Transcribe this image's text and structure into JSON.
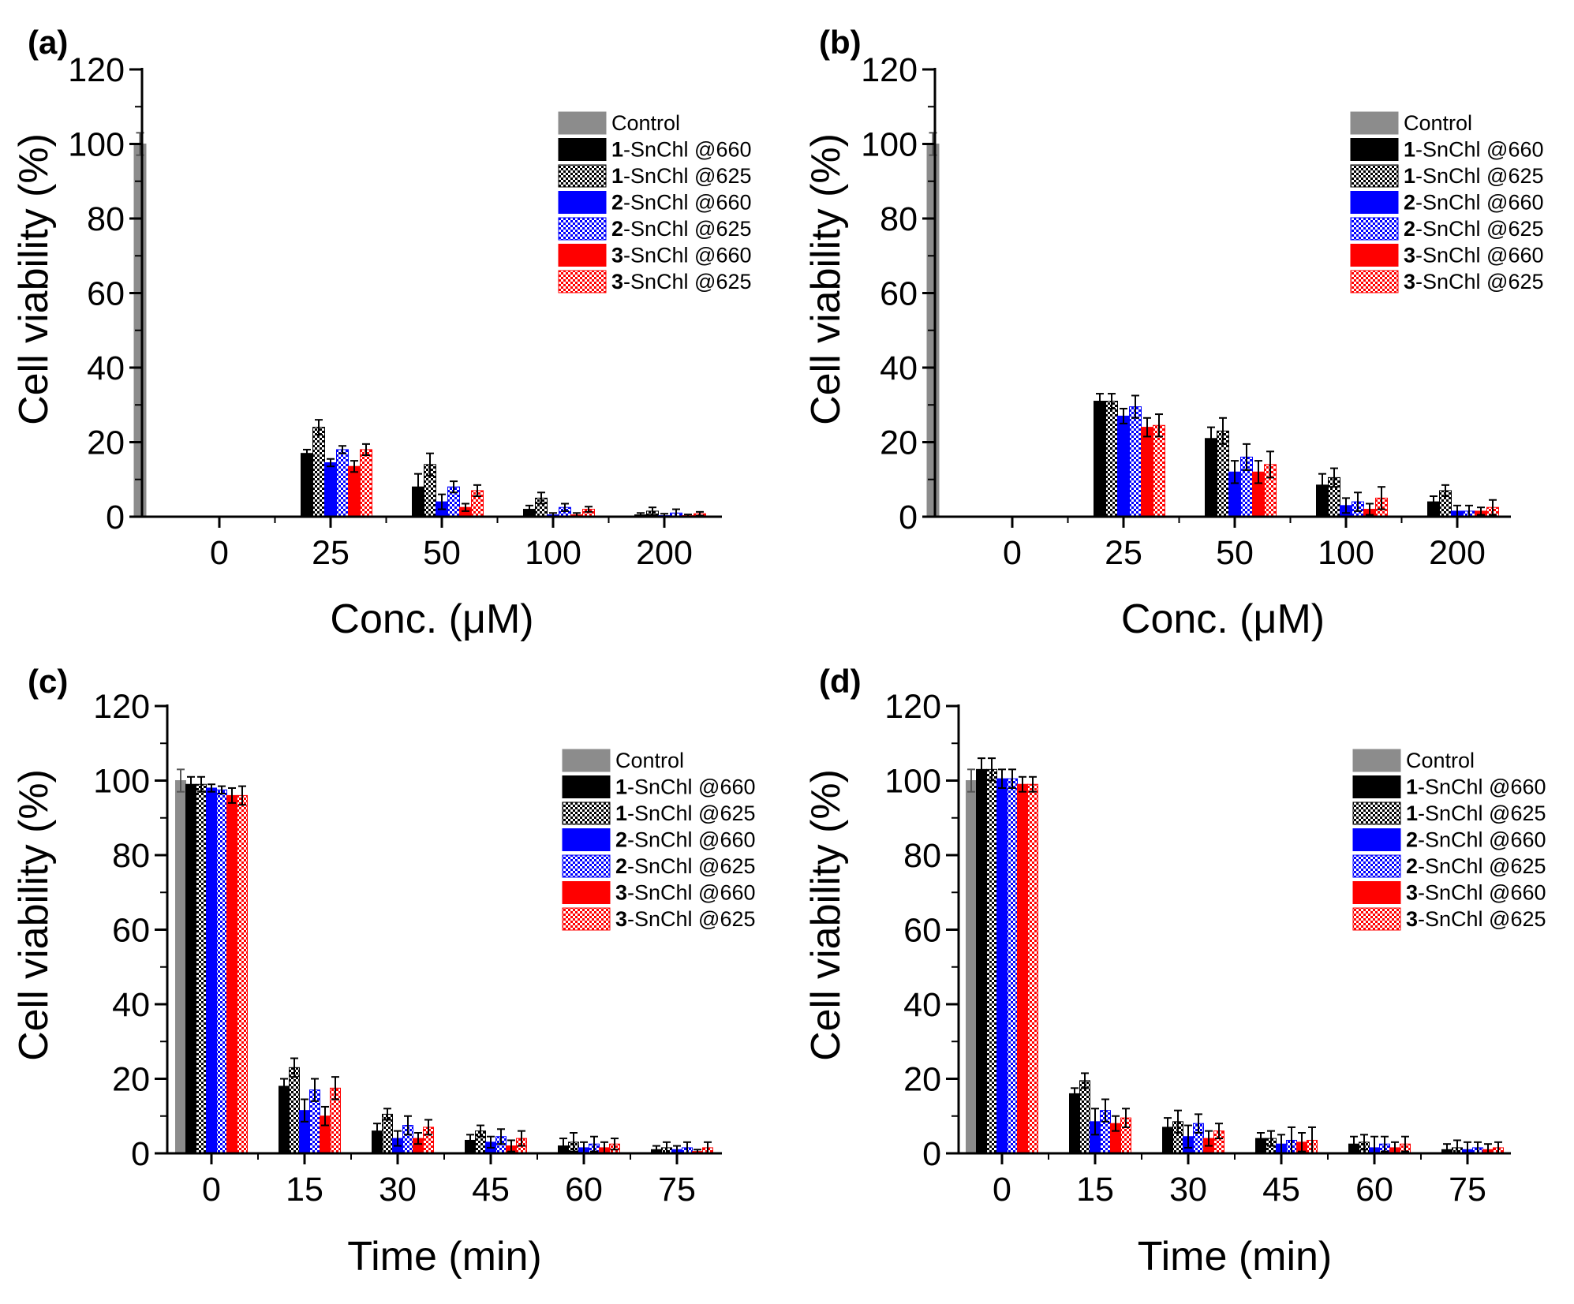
{
  "colors": {
    "control": "#8c8c8c",
    "black": "#000000",
    "blue": "#0000ff",
    "red": "#ff0000"
  },
  "legend": [
    {
      "num": "",
      "text": "Control"
    },
    {
      "num": "1",
      "text": "-SnChl @660"
    },
    {
      "num": "1",
      "text": "-SnChl @625"
    },
    {
      "num": "2",
      "text": "-SnChl @660"
    },
    {
      "num": "2",
      "text": "-SnChl @625"
    },
    {
      "num": "3",
      "text": "-SnChl @660"
    },
    {
      "num": "3",
      "text": "-SnChl @625"
    }
  ],
  "chart_data": [
    {
      "type": "bar",
      "panel": "(a)",
      "xlabel": "Conc. (μM)",
      "ylabel": "Cell viability (%)",
      "ylim": [
        0,
        120
      ],
      "yticks": [
        0,
        20,
        40,
        60,
        80,
        100,
        120
      ],
      "categories": [
        "0",
        "25",
        "50",
        "100",
        "200"
      ],
      "series": [
        {
          "name": "Control",
          "values": [
            100,
            null,
            null,
            null,
            null
          ],
          "errors": [
            3,
            0,
            0,
            0,
            0
          ]
        },
        {
          "name": "1-SnChl @660",
          "values": [
            null,
            17,
            8,
            2,
            0.5
          ],
          "errors": [
            0,
            1,
            3.5,
            1,
            0.5
          ]
        },
        {
          "name": "1-SnChl @625",
          "values": [
            null,
            24,
            14,
            5,
            1.5
          ],
          "errors": [
            0,
            2,
            3,
            1.5,
            1
          ]
        },
        {
          "name": "2-SnChl @660",
          "values": [
            null,
            14.5,
            4,
            0.5,
            0.3
          ],
          "errors": [
            0,
            1,
            2,
            0.5,
            0.5
          ]
        },
        {
          "name": "2-SnChl @625",
          "values": [
            null,
            18,
            8,
            2.5,
            1
          ],
          "errors": [
            0,
            1,
            1.5,
            1,
            1
          ]
        },
        {
          "name": "3-SnChl @660",
          "values": [
            null,
            13.5,
            2.5,
            0.5,
            0.3
          ],
          "errors": [
            0,
            1.5,
            1,
            0.5,
            0.3
          ]
        },
        {
          "name": "3-SnChl @625",
          "values": [
            null,
            18,
            7,
            2,
            0.8
          ],
          "errors": [
            0,
            1.5,
            1.5,
            0.7,
            0.5
          ]
        }
      ]
    },
    {
      "type": "bar",
      "panel": "(b)",
      "xlabel": "Conc. (μM)",
      "ylabel": "Cell viability (%)",
      "ylim": [
        0,
        120
      ],
      "yticks": [
        0,
        20,
        40,
        60,
        80,
        100,
        120
      ],
      "categories": [
        "0",
        "25",
        "50",
        "100",
        "200"
      ],
      "series": [
        {
          "name": "Control",
          "values": [
            100,
            null,
            null,
            null,
            null
          ],
          "errors": [
            3,
            0,
            0,
            0,
            0
          ]
        },
        {
          "name": "1-SnChl @660",
          "values": [
            null,
            31,
            21,
            8.5,
            4
          ],
          "errors": [
            0,
            2,
            3,
            3,
            1.5
          ]
        },
        {
          "name": "1-SnChl @625",
          "values": [
            null,
            31,
            23,
            10.5,
            7
          ],
          "errors": [
            0,
            2,
            3.5,
            2.5,
            1.5
          ]
        },
        {
          "name": "2-SnChl @660",
          "values": [
            null,
            27,
            12,
            3,
            1.5
          ],
          "errors": [
            0,
            2,
            3,
            2,
            1.5
          ]
        },
        {
          "name": "2-SnChl @625",
          "values": [
            null,
            29.5,
            16,
            4,
            1.5
          ],
          "errors": [
            0,
            3,
            3.5,
            2.5,
            1.5
          ]
        },
        {
          "name": "3-SnChl @660",
          "values": [
            null,
            24,
            12,
            2,
            1.5
          ],
          "errors": [
            0,
            2.5,
            3,
            1.5,
            1
          ]
        },
        {
          "name": "3-SnChl @625",
          "values": [
            null,
            24.5,
            14,
            5,
            2.5
          ],
          "errors": [
            0,
            3,
            3.5,
            3,
            2
          ]
        }
      ]
    },
    {
      "type": "bar",
      "panel": "(c)",
      "xlabel": "Time (min)",
      "ylabel": "Cell viability (%)",
      "ylim": [
        0,
        120
      ],
      "yticks": [
        0,
        20,
        40,
        60,
        80,
        100,
        120
      ],
      "categories": [
        "0",
        "15",
        "30",
        "45",
        "60",
        "75"
      ],
      "series": [
        {
          "name": "Control",
          "values": [
            100,
            null,
            null,
            null,
            null,
            null
          ],
          "errors": [
            3,
            0,
            0,
            0,
            0,
            0
          ]
        },
        {
          "name": "1-SnChl @660",
          "values": [
            99,
            18,
            6,
            3.5,
            2,
            1
          ],
          "errors": [
            2,
            2,
            2,
            1.5,
            2,
            1
          ]
        },
        {
          "name": "1-SnChl @625",
          "values": [
            99,
            23,
            10.5,
            6,
            3,
            1.5
          ],
          "errors": [
            2,
            2.5,
            1.5,
            1.5,
            2.5,
            1.5
          ]
        },
        {
          "name": "2-SnChl @660",
          "values": [
            98,
            11.5,
            4,
            3,
            1.5,
            1
          ],
          "errors": [
            1,
            3,
            2,
            1.5,
            1.5,
            1
          ]
        },
        {
          "name": "2-SnChl @625",
          "values": [
            97.5,
            17,
            7.5,
            4.5,
            2.5,
            1.5
          ],
          "errors": [
            1,
            3,
            2.5,
            2,
            2,
            1.5
          ]
        },
        {
          "name": "3-SnChl @660",
          "values": [
            96,
            10,
            4,
            2,
            1.5,
            0.5
          ],
          "errors": [
            2,
            2.5,
            1.5,
            1.5,
            1.5,
            0.5
          ]
        },
        {
          "name": "3-SnChl @625",
          "values": [
            96,
            17.5,
            7,
            4,
            2.5,
            1.5
          ],
          "errors": [
            2.5,
            3,
            2,
            2,
            1.5,
            1.5
          ]
        }
      ]
    },
    {
      "type": "bar",
      "panel": "(d)",
      "xlabel": "Time (min)",
      "ylabel": "Cell viability (%)",
      "ylim": [
        0,
        120
      ],
      "yticks": [
        0,
        20,
        40,
        60,
        80,
        100,
        120
      ],
      "categories": [
        "0",
        "15",
        "30",
        "45",
        "60",
        "75"
      ],
      "series": [
        {
          "name": "Control",
          "values": [
            100,
            null,
            null,
            null,
            null,
            null
          ],
          "errors": [
            3,
            0,
            0,
            0,
            0,
            0
          ]
        },
        {
          "name": "1-SnChl @660",
          "values": [
            103,
            16,
            7,
            4,
            2.5,
            1
          ],
          "errors": [
            3,
            1.5,
            2.5,
            1.5,
            2,
            1.5
          ]
        },
        {
          "name": "1-SnChl @625",
          "values": [
            103,
            19.5,
            8.5,
            4,
            3,
            1.5
          ],
          "errors": [
            3,
            2,
            3,
            2,
            2,
            2
          ]
        },
        {
          "name": "2-SnChl @660",
          "values": [
            100.5,
            8.5,
            4.5,
            2.5,
            1.5,
            1
          ],
          "errors": [
            2.5,
            3.5,
            3,
            2.5,
            3,
            2
          ]
        },
        {
          "name": "2-SnChl @625",
          "values": [
            100.5,
            11.5,
            8,
            3.5,
            2.5,
            1.5
          ],
          "errors": [
            2.5,
            3,
            2.5,
            3.5,
            2,
            1.5
          ]
        },
        {
          "name": "3-SnChl @660",
          "values": [
            99,
            8,
            4,
            3,
            1.5,
            1
          ],
          "errors": [
            2,
            2,
            2,
            2.5,
            1.5,
            1.5
          ]
        },
        {
          "name": "3-SnChl @625",
          "values": [
            99,
            9.5,
            6,
            3.5,
            2.5,
            1.5
          ],
          "errors": [
            2,
            2.5,
            2,
            3.5,
            2,
            1.5
          ]
        }
      ]
    }
  ]
}
